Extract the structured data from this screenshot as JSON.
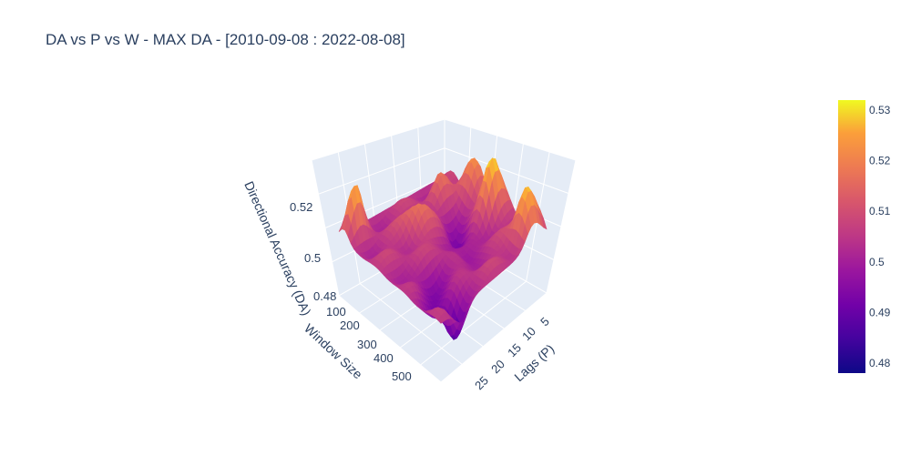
{
  "title": "DA vs P vs W - MAX DA - [2010-09-08 : 2022-08-08]",
  "chart_data": {
    "type": "surface",
    "title": "DA vs P vs W - MAX DA - [2010-09-08 : 2022-08-08]",
    "x_axis": {
      "label": "Lags (P)",
      "ticks": [
        "5",
        "10",
        "15",
        "20",
        "25"
      ],
      "range": [
        1,
        27
      ]
    },
    "y_axis": {
      "label": "Window Size",
      "ticks": [
        "100",
        "200",
        "300",
        "400",
        "500"
      ],
      "range": [
        50,
        520
      ]
    },
    "z_axis": {
      "label": "Directional Accuracy (DA)",
      "ticks": [
        "0.48",
        "0.5",
        "0.52"
      ],
      "range": [
        0.475,
        0.535
      ]
    },
    "colorscale": "Plasma",
    "colorbar": {
      "ticks": [
        "0.53",
        "0.52",
        "0.51",
        "0.5",
        "0.49",
        "0.48"
      ],
      "min": 0.478,
      "max": 0.532
    },
    "z_min": 0.478,
    "z_max": 0.532
  }
}
